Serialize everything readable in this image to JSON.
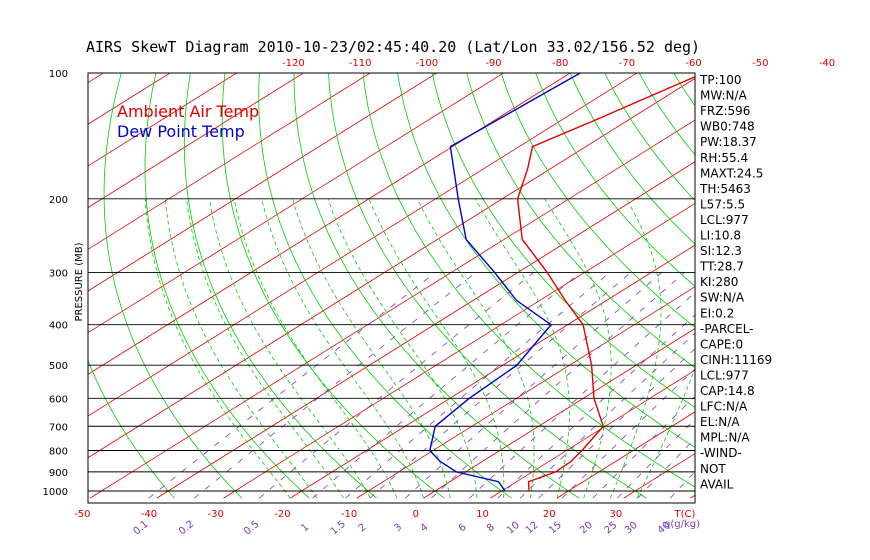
{
  "chart_data": {
    "type": "line",
    "title": "AIRS SkewT Diagram 2010-10-23/02:45:40.20 (Lat/Lon 33.02/156.52 deg)",
    "ylabel": "PRESSURE (MB)",
    "xunit": "T(C)",
    "mixing_unit": "q(g/kg)",
    "y_ticks": [
      100,
      200,
      300,
      400,
      500,
      600,
      700,
      800,
      900,
      1000
    ],
    "top_ticks": [
      -120,
      -110,
      -100,
      -90,
      -80,
      -70,
      -60,
      -50,
      -40
    ],
    "bottom_ticks": [
      -50,
      -40,
      -30,
      -20,
      -10,
      0,
      10,
      20,
      30
    ],
    "mixing_ratio_labels": [
      "0.1",
      "0.2",
      "0.5",
      "1",
      "1.5",
      "2",
      "3",
      "4",
      "6",
      "8",
      "10",
      "12",
      "15",
      "20",
      "25",
      "30",
      "40"
    ],
    "legend": [
      {
        "name": "Ambient Air Temp",
        "color": "#e00000"
      },
      {
        "name": "Dew Point Temp",
        "color": "#0000cc"
      }
    ],
    "series": [
      {
        "name": "Ambient Air Temp",
        "color": "#e00000",
        "points": [
          {
            "p": 1000,
            "t": 14.1
          },
          {
            "p": 950,
            "t": 11.8
          },
          {
            "p": 900,
            "t": 13.5
          },
          {
            "p": 850,
            "t": 13.3
          },
          {
            "p": 800,
            "t": 12.3
          },
          {
            "p": 700,
            "t": 9.7
          },
          {
            "p": 600,
            "t": 1.6
          },
          {
            "p": 500,
            "t": -6.7
          },
          {
            "p": 400,
            "t": -17.7
          },
          {
            "p": 350,
            "t": -26.2
          },
          {
            "p": 300,
            "t": -35.6
          },
          {
            "p": 250,
            "t": -47.3
          },
          {
            "p": 200,
            "t": -57.7
          },
          {
            "p": 170,
            "t": -63.3
          },
          {
            "p": 150,
            "t": -68.0
          },
          {
            "p": 130,
            "t": -65.0
          },
          {
            "p": 100,
            "t": -60.0
          }
        ]
      },
      {
        "name": "Dew Point Temp",
        "color": "#0000cc",
        "points": [
          {
            "p": 1000,
            "t": 10.5
          },
          {
            "p": 950,
            "t": 7.3
          },
          {
            "p": 900,
            "t": -1.4
          },
          {
            "p": 850,
            "t": -6.3
          },
          {
            "p": 800,
            "t": -10.5
          },
          {
            "p": 700,
            "t": -15.5
          },
          {
            "p": 600,
            "t": -17.1
          },
          {
            "p": 500,
            "t": -17.9
          },
          {
            "p": 400,
            "t": -22.5
          },
          {
            "p": 350,
            "t": -33.5
          },
          {
            "p": 300,
            "t": -43.5
          },
          {
            "p": 250,
            "t": -55.7
          },
          {
            "p": 200,
            "t": -66.6
          },
          {
            "p": 150,
            "t": -80.3
          },
          {
            "p": 100,
            "t": -78.5
          }
        ]
      }
    ]
  },
  "indices": [
    "TP:100",
    "MW:N/A",
    "FRZ:596",
    "WB0:748",
    "PW:18.37",
    "RH:55.4",
    "MAXT:24.5",
    "TH:5463",
    "L57:5.5",
    "LCL:977",
    "LI:10.8",
    "SI:12.3",
    "TT:28.7",
    "KI:280",
    "SW:N/A",
    "EI:0.2",
    "-PARCEL-",
    "CAPE:0",
    "CINH:11169",
    "LCL:977",
    "CAP:14.8",
    "LFC:N/A",
    "EL:N/A",
    "MPL:N/A",
    "-WIND-",
    "NOT",
    "AVAIL"
  ],
  "colors": {
    "isotherm": "#e00000",
    "dry_adiabat": "#00cc00",
    "moist_adiabat": "#00cc00",
    "mixing_ratio": "#7a3ab8",
    "isobar": "#000000"
  }
}
